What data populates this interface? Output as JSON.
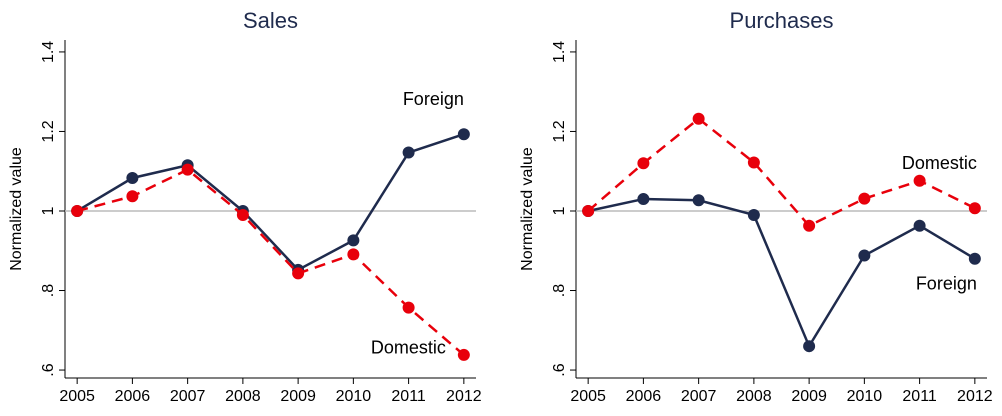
{
  "chart_data": [
    {
      "type": "line",
      "title": "Sales",
      "y_label": "Normalized value",
      "x": [
        2005,
        2006,
        2007,
        2008,
        2009,
        2010,
        2011,
        2012
      ],
      "xlim": [
        2004.78,
        2012.22
      ],
      "xticks": [
        2005,
        2006,
        2007,
        2008,
        2009,
        2010,
        2011,
        2012
      ],
      "ylim": [
        0.58,
        1.43
      ],
      "yticks": [
        {
          "value": 0.6,
          "label": ".6"
        },
        {
          "value": 0.8,
          "label": ".8"
        },
        1,
        1.2,
        1.4
      ],
      "reference_line": 1,
      "series": [
        {
          "name": "Foreign",
          "color": "#1f2b4d",
          "style": "solid",
          "values": [
            1.0,
            1.083,
            1.115,
            1.0,
            0.852,
            0.926,
            1.147,
            1.193
          ]
        },
        {
          "name": "Domestic",
          "color": "#e8000b",
          "style": "dashed",
          "values": [
            1.0,
            1.037,
            1.104,
            0.99,
            0.843,
            0.891,
            0.757,
            0.638
          ]
        }
      ]
    },
    {
      "type": "line",
      "title": "Purchases",
      "y_label": "Normalized value",
      "x": [
        2005,
        2006,
        2007,
        2008,
        2009,
        2010,
        2011,
        2012
      ],
      "xlim": [
        2004.78,
        2012.22
      ],
      "xticks": [
        2005,
        2006,
        2007,
        2008,
        2009,
        2010,
        2011,
        2012
      ],
      "ylim": [
        0.58,
        1.43
      ],
      "yticks": [
        {
          "value": 0.6,
          "label": ".6"
        },
        {
          "value": 0.8,
          "label": ".8"
        },
        1,
        1.2,
        1.4
      ],
      "reference_line": 1,
      "series": [
        {
          "name": "Foreign",
          "color": "#1f2b4d",
          "style": "solid",
          "values": [
            1.0,
            1.03,
            1.027,
            0.99,
            0.66,
            0.888,
            0.963,
            0.88
          ]
        },
        {
          "name": "Domestic",
          "color": "#e8000b",
          "style": "dashed",
          "values": [
            1.0,
            1.12,
            1.232,
            1.122,
            0.963,
            1.031,
            1.076,
            1.007
          ]
        }
      ]
    }
  ]
}
